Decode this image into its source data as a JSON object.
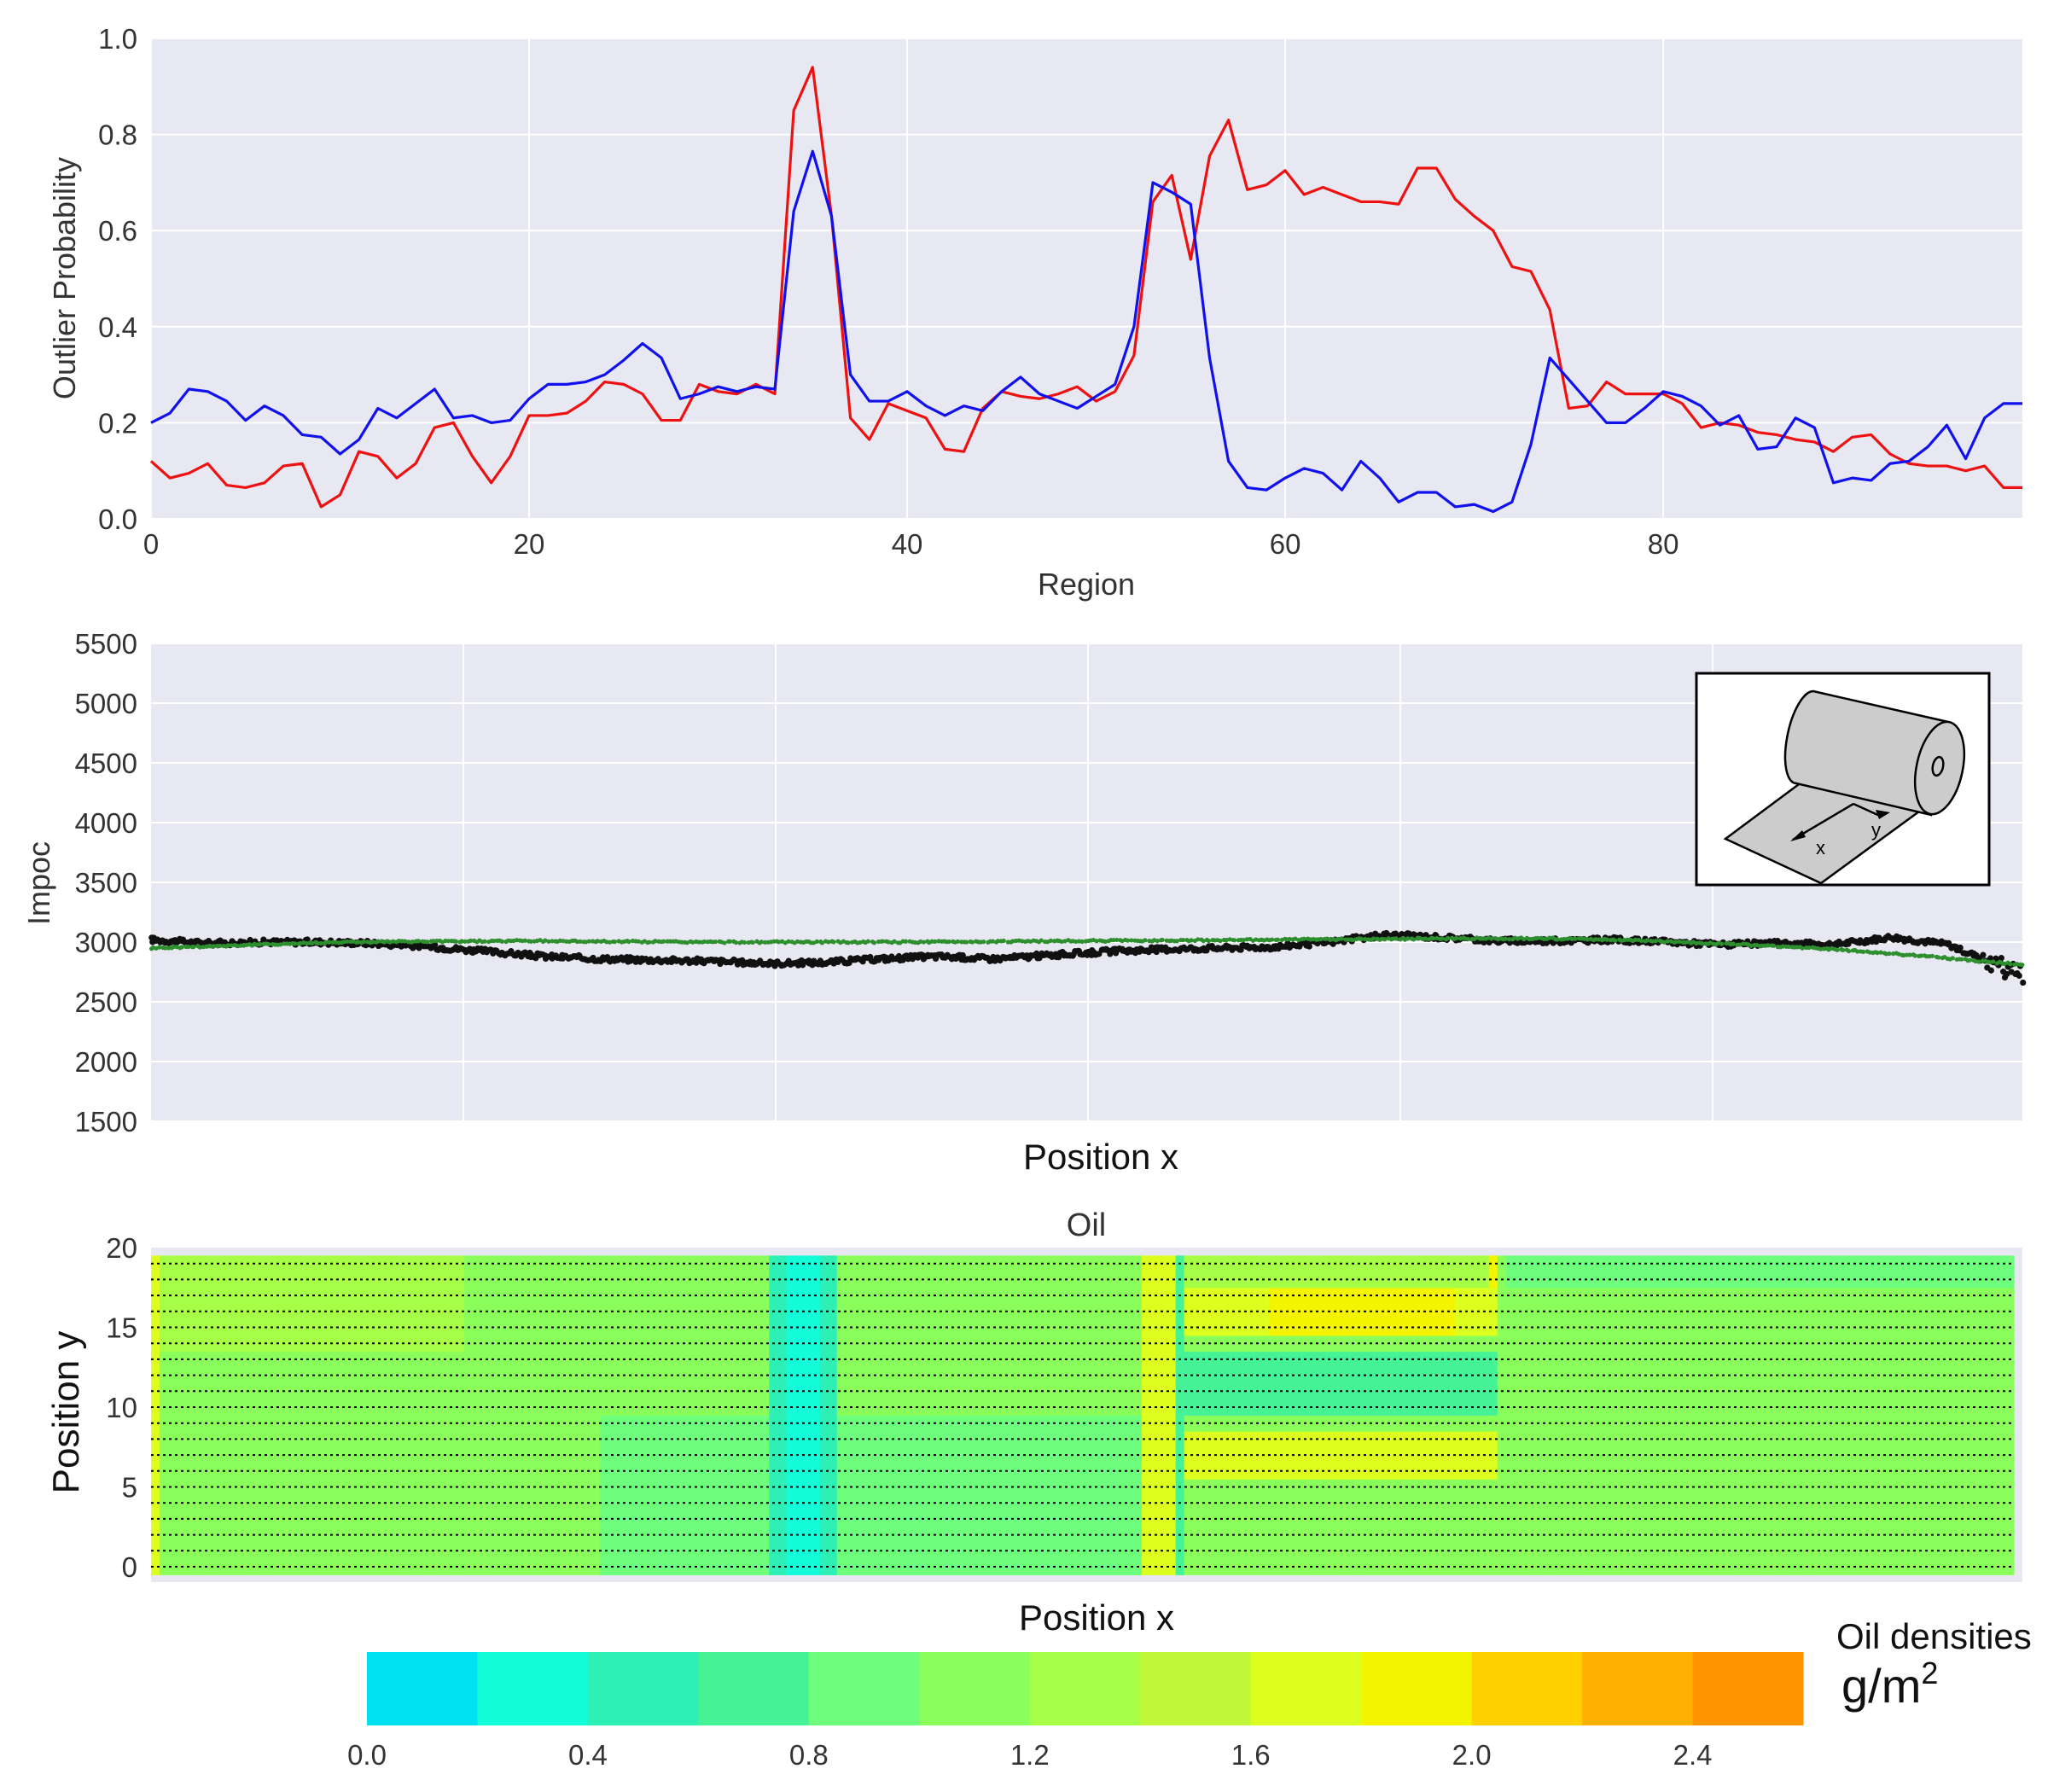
{
  "colors": {
    "panel_bg": "#e8e8f2",
    "grid": "#ffffff",
    "red": "#ee1111",
    "blue": "#1111ee",
    "black_points": "#111111",
    "green_points": "#2d8f2d"
  },
  "chart_data": [
    {
      "type": "line",
      "title": "",
      "xlabel": "Region",
      "ylabel": "Outlier Probability",
      "xlim": [
        0,
        99
      ],
      "ylim": [
        0.0,
        1.0
      ],
      "x_ticks": [
        0,
        20,
        40,
        60,
        80
      ],
      "x_tick_labels": [
        "0",
        "20",
        "40",
        "60",
        "80"
      ],
      "y_ticks": [
        0.0,
        0.2,
        0.4,
        0.6,
        0.8,
        1.0
      ],
      "y_tick_labels": [
        "0.0",
        "0.2",
        "0.4",
        "0.6",
        "0.8",
        "1.0"
      ],
      "grid": true,
      "legend": "none",
      "x": [
        0,
        1,
        2,
        3,
        4,
        5,
        6,
        7,
        8,
        9,
        10,
        11,
        12,
        13,
        14,
        15,
        16,
        17,
        18,
        19,
        20,
        21,
        22,
        23,
        24,
        25,
        26,
        27,
        28,
        29,
        30,
        31,
        32,
        33,
        34,
        35,
        36,
        37,
        38,
        39,
        40,
        41,
        42,
        43,
        44,
        45,
        46,
        47,
        48,
        49,
        50,
        51,
        52,
        53,
        54,
        55,
        56,
        57,
        58,
        59,
        60,
        61,
        62,
        63,
        64,
        65,
        66,
        67,
        68,
        69,
        70,
        71,
        72,
        73,
        74,
        75,
        76,
        77,
        78,
        79,
        80,
        81,
        82,
        83,
        84,
        85,
        86,
        87,
        88,
        89,
        90,
        91,
        92,
        93,
        94,
        95,
        96,
        97,
        98,
        99
      ],
      "series": [
        {
          "color": "#ee1111",
          "values": [
            0.12,
            0.085,
            0.095,
            0.115,
            0.07,
            0.065,
            0.075,
            0.11,
            0.115,
            0.025,
            0.05,
            0.14,
            0.13,
            0.085,
            0.115,
            0.19,
            0.2,
            0.13,
            0.075,
            0.13,
            0.215,
            0.215,
            0.22,
            0.245,
            0.285,
            0.28,
            0.26,
            0.205,
            0.205,
            0.28,
            0.265,
            0.26,
            0.28,
            0.26,
            0.85,
            0.94,
            0.63,
            0.21,
            0.165,
            0.24,
            0.225,
            0.21,
            0.145,
            0.14,
            0.23,
            0.265,
            0.255,
            0.25,
            0.26,
            0.275,
            0.245,
            0.265,
            0.34,
            0.66,
            0.715,
            0.54,
            0.755,
            0.83,
            0.685,
            0.695,
            0.725,
            0.675,
            0.69,
            0.675,
            0.66,
            0.66,
            0.655,
            0.73,
            0.73,
            0.665,
            0.63,
            0.6,
            0.525,
            0.515,
            0.435,
            0.23,
            0.235,
            0.285,
            0.26,
            0.26,
            0.26,
            0.24,
            0.19,
            0.2,
            0.195,
            0.18,
            0.175,
            0.165,
            0.16,
            0.14,
            0.17,
            0.175,
            0.135,
            0.115,
            0.11,
            0.11,
            0.1,
            0.11,
            0.065,
            0.065
          ]
        },
        {
          "color": "#1111ee",
          "values": [
            0.2,
            0.22,
            0.27,
            0.265,
            0.245,
            0.205,
            0.235,
            0.215,
            0.175,
            0.17,
            0.135,
            0.165,
            0.23,
            0.21,
            0.24,
            0.27,
            0.21,
            0.215,
            0.2,
            0.205,
            0.25,
            0.28,
            0.28,
            0.285,
            0.3,
            0.33,
            0.365,
            0.335,
            0.25,
            0.26,
            0.275,
            0.265,
            0.275,
            0.27,
            0.64,
            0.765,
            0.63,
            0.3,
            0.245,
            0.245,
            0.265,
            0.235,
            0.215,
            0.235,
            0.225,
            0.265,
            0.295,
            0.26,
            0.245,
            0.23,
            0.255,
            0.28,
            0.4,
            0.7,
            0.68,
            0.655,
            0.335,
            0.12,
            0.065,
            0.06,
            0.085,
            0.105,
            0.095,
            0.06,
            0.12,
            0.085,
            0.035,
            0.055,
            0.055,
            0.025,
            0.03,
            0.015,
            0.035,
            0.155,
            0.335,
            0.29,
            0.245,
            0.2,
            0.2,
            0.23,
            0.265,
            0.255,
            0.235,
            0.195,
            0.215,
            0.145,
            0.15,
            0.21,
            0.19,
            0.075,
            0.085,
            0.08,
            0.115,
            0.12,
            0.15,
            0.195,
            0.125,
            0.21,
            0.24,
            0.24
          ]
        }
      ]
    },
    {
      "type": "scatter",
      "title": "",
      "xlabel": "Position x",
      "ylabel": "Impoc",
      "ylim": [
        1500,
        5500
      ],
      "y_ticks": [
        1500,
        2000,
        2500,
        3000,
        3500,
        4000,
        4500,
        5000,
        5500
      ],
      "y_tick_labels": [
        "1500",
        "2000",
        "2500",
        "3000",
        "3500",
        "4000",
        "4500",
        "5000",
        "5500"
      ],
      "x_tick_labels": [],
      "grid": true,
      "inset": {
        "axis_labels": [
          "x",
          "y"
        ],
        "depicts": "roll-of-sheet-icon"
      },
      "series": [
        {
          "color": "#111111",
          "x": [
            0,
            0.03,
            0.06,
            0.09,
            0.12,
            0.15,
            0.18,
            0.21,
            0.24,
            0.27,
            0.3,
            0.33,
            0.36,
            0.39,
            0.42,
            0.45,
            0.48,
            0.51,
            0.54,
            0.57,
            0.6,
            0.63,
            0.66,
            0.69,
            0.72,
            0.75,
            0.78,
            0.81,
            0.84,
            0.87,
            0.9,
            0.93,
            0.96,
            0.98,
            1.0
          ],
          "values": [
            3020,
            2990,
            3000,
            3000,
            2990,
            2960,
            2920,
            2880,
            2860,
            2850,
            2840,
            2820,
            2830,
            2860,
            2880,
            2860,
            2890,
            2920,
            2940,
            2950,
            2960,
            3000,
            3060,
            3040,
            3010,
            3010,
            3020,
            3000,
            2980,
            2990,
            2980,
            3040,
            2980,
            2850,
            2720
          ]
        },
        {
          "color": "#2d8f2d",
          "x": [
            0,
            0.1,
            0.2,
            0.3,
            0.4,
            0.5,
            0.6,
            0.7,
            0.75,
            0.8,
            0.85,
            0.9,
            0.95,
            1.0
          ],
          "values": [
            2950,
            3000,
            3010,
            3000,
            3000,
            3010,
            3020,
            3030,
            3030,
            3010,
            2980,
            2940,
            2880,
            2810
          ]
        }
      ]
    },
    {
      "type": "heatmap",
      "title": "Oil",
      "xlabel": "Position x",
      "ylabel": "Position y",
      "ylim": [
        0,
        20
      ],
      "y_ticks": [
        0,
        5,
        10,
        15,
        20
      ],
      "y_tick_labels": [
        "0",
        "5",
        "10",
        "15",
        "20"
      ],
      "x_tick_labels": [],
      "grid": false,
      "colorbar": {
        "label": "Oil densities",
        "unit": "g/m",
        "unit_exponent": "2",
        "bounds": [
          0.0,
          0.2,
          0.4,
          0.6,
          0.8,
          1.0,
          1.2,
          1.4,
          1.6,
          1.8,
          2.0,
          2.2,
          2.4,
          2.6
        ],
        "tick_labels": [
          "0.0",
          "0.4",
          "0.8",
          "1.2",
          "1.6",
          "2.0",
          "2.4"
        ],
        "tick_values": [
          0.0,
          0.4,
          0.8,
          1.2,
          1.6,
          2.0,
          2.4
        ],
        "colors": [
          "#00e0f0",
          "#14fcd8",
          "#2ef0b4",
          "#46f296",
          "#6eff7c",
          "#8aff5c",
          "#a6ff46",
          "#c2f83a",
          "#ddff20",
          "#f4f400",
          "#ffd000",
          "#ffb000",
          "#ff9400"
        ]
      },
      "rows_y": [
        0,
        1,
        2,
        3,
        4,
        5,
        6,
        7,
        8,
        9,
        10,
        11,
        12,
        13,
        14,
        15,
        16,
        17,
        18,
        19
      ],
      "x_rel": [
        0,
        0.05,
        0.1,
        0.15,
        0.2,
        0.25,
        0.3,
        0.35,
        0.4,
        0.45,
        0.5,
        0.55,
        0.6,
        0.65,
        0.7,
        0.75,
        0.8,
        0.85,
        0.9,
        0.95,
        1.0
      ]
    }
  ]
}
